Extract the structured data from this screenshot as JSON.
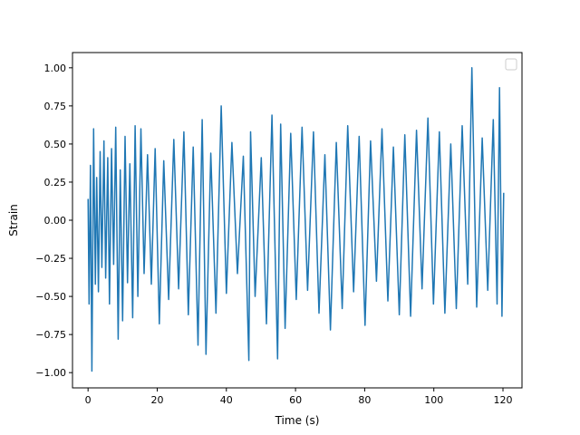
{
  "chart_data": {
    "type": "line",
    "title": "",
    "xlabel": "Time (s)",
    "ylabel": "Strain",
    "xlim": [
      -4.5,
      125.5
    ],
    "ylim": [
      -1.1,
      1.1
    ],
    "xticks": [
      0,
      20,
      40,
      60,
      80,
      100,
      120
    ],
    "yticks": [
      -1.0,
      -0.75,
      -0.5,
      -0.25,
      0.0,
      0.25,
      0.5,
      0.75,
      1.0
    ],
    "xtick_labels": [
      "0",
      "20",
      "40",
      "60",
      "80",
      "100",
      "120"
    ],
    "ytick_labels": [
      "−1.00",
      "−0.75",
      "−0.50",
      "−0.25",
      "0.00",
      "0.25",
      "0.50",
      "0.75",
      "1.00"
    ],
    "grid": false,
    "legend": {
      "placement": "top-right",
      "entries": []
    },
    "series": [
      {
        "color": "#1f77b4",
        "x": [
          0,
          0.3,
          0.7,
          1.1,
          1.6,
          2.1,
          2.5,
          3.0,
          3.5,
          4.0,
          4.6,
          5.1,
          5.7,
          6.2,
          6.8,
          7.4,
          8.0,
          8.7,
          9.3,
          10.0,
          10.7,
          11.4,
          12.1,
          12.9,
          13.6,
          14.4,
          15.3,
          16.2,
          17.2,
          18.3,
          19.4,
          20.6,
          21.9,
          23.3,
          24.8,
          26.2,
          27.7,
          29.0,
          30.4,
          31.8,
          33.0,
          34.1,
          35.5,
          37.0,
          38.5,
          40.0,
          41.6,
          43.2,
          44.9,
          46.5,
          47.0,
          48.3,
          50.1,
          51.6,
          53.2,
          54.8,
          55.7,
          57.0,
          58.6,
          60.2,
          61.9,
          63.5,
          65.2,
          66.8,
          68.5,
          70.1,
          71.8,
          73.5,
          75.1,
          76.8,
          78.4,
          80.1,
          81.7,
          83.4,
          85.0,
          86.7,
          88.3,
          90.0,
          91.6,
          93.3,
          95.0,
          96.6,
          98.3,
          99.9,
          101.6,
          103.2,
          104.9,
          106.5,
          108.2,
          109.8,
          111.0,
          112.4,
          114.0,
          115.6,
          117.2,
          118.3,
          119.0,
          119.7,
          120.2
        ],
        "y": [
          0.14,
          -0.55,
          0.36,
          -0.99,
          0.6,
          -0.42,
          0.28,
          -0.47,
          0.45,
          -0.31,
          0.52,
          -0.38,
          0.41,
          -0.55,
          0.47,
          -0.29,
          0.61,
          -0.78,
          0.33,
          -0.66,
          0.55,
          -0.41,
          0.37,
          -0.64,
          0.62,
          -0.5,
          0.6,
          -0.35,
          0.43,
          -0.42,
          0.47,
          -0.68,
          0.39,
          -0.52,
          0.53,
          -0.45,
          0.58,
          -0.62,
          0.48,
          -0.82,
          0.66,
          -0.88,
          0.44,
          -0.61,
          0.75,
          -0.48,
          0.51,
          -0.35,
          0.42,
          -0.92,
          0.58,
          -0.5,
          0.41,
          -0.68,
          0.69,
          -0.91,
          0.63,
          -0.71,
          0.57,
          -0.52,
          0.61,
          -0.46,
          0.58,
          -0.61,
          0.43,
          -0.72,
          0.51,
          -0.58,
          0.62,
          -0.47,
          0.55,
          -0.69,
          0.52,
          -0.4,
          0.6,
          -0.53,
          0.48,
          -0.62,
          0.56,
          -0.63,
          0.59,
          -0.45,
          0.67,
          -0.55,
          0.58,
          -0.61,
          0.5,
          -0.58,
          0.62,
          -0.42,
          1.0,
          -0.57,
          0.54,
          -0.46,
          0.66,
          -0.55,
          0.87,
          -0.63,
          0.18
        ]
      }
    ]
  }
}
